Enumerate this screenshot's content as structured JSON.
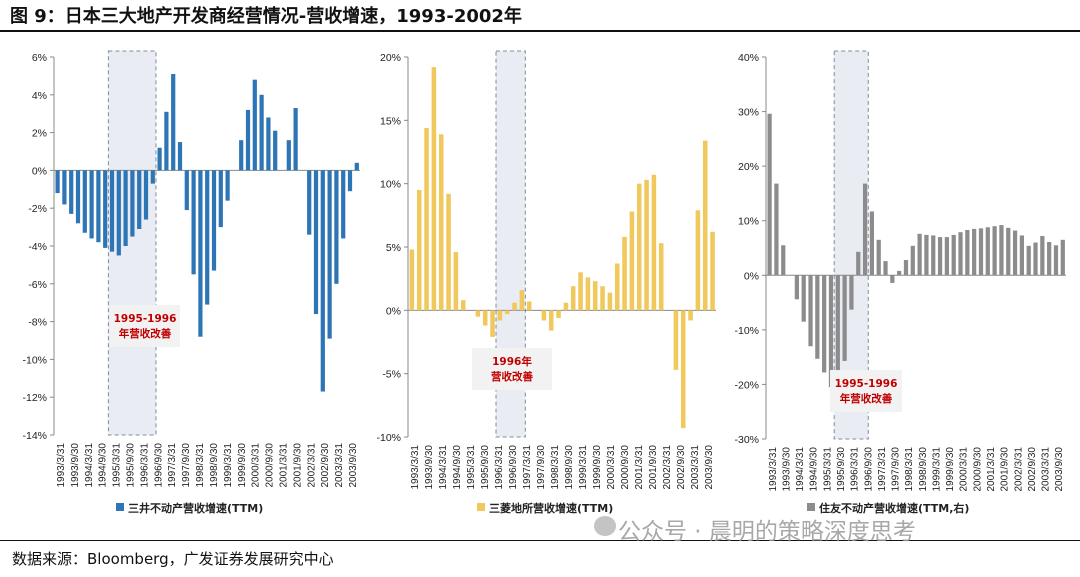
{
  "header": {
    "title": "图 9：日本三大地产开发商经营情况-营收增速，1993-2002年"
  },
  "footer": {
    "source": "数据来源：Bloomberg，广发证券发展研究中心",
    "watermark": "公众号 · 晨明的策略深度思考"
  },
  "chart_data": [
    {
      "type": "bar",
      "series": [
        {
          "name": "三井不动产营收增速(TTM)",
          "color": "#2e75b6"
        }
      ],
      "x_ticks": [
        "1993/3/31",
        "1993/9/30",
        "1994/3/31",
        "1994/9/30",
        "1995/3/31",
        "1995/9/30",
        "1996/3/31",
        "1996/9/30",
        "1997/3/31",
        "1997/9/30",
        "1998/3/31",
        "1998/9/30",
        "1999/3/31",
        "1999/9/30",
        "2000/3/31",
        "2000/9/30",
        "2001/3/31",
        "2001/9/30",
        "2002/3/31",
        "2002/9/30",
        "2003/3/31",
        "2003/9/30"
      ],
      "values": [
        -1.2,
        -1.8,
        -2.3,
        -2.8,
        -3.3,
        -3.6,
        -3.8,
        -4.1,
        -4.3,
        -4.5,
        -4.0,
        -3.5,
        -3.1,
        -2.6,
        -0.7,
        1.2,
        3.1,
        5.1,
        1.5,
        -2.1,
        -5.5,
        -8.8,
        -7.1,
        -5.3,
        -3.0,
        -1.6,
        0.0,
        1.6,
        3.2,
        4.8,
        4.0,
        2.8,
        2.1,
        0.0,
        1.6,
        3.3,
        0.0,
        -3.4,
        -7.6,
        -11.7,
        -8.9,
        -6.0,
        -3.6,
        -1.1,
        0.4
      ],
      "y_ticks": [
        "6%",
        "4%",
        "2%",
        "0%",
        "-2%",
        "-4%",
        "-6%",
        "-8%",
        "-10%",
        "-12%",
        "-14%"
      ],
      "ylim": [
        -14,
        6
      ],
      "highlight": {
        "from": 8,
        "to": 15,
        "label": "1995-1996 年营收改善"
      }
    },
    {
      "type": "bar",
      "series": [
        {
          "name": "三菱地所营收增速(TTM)",
          "color": "#f0c85c"
        }
      ],
      "x_ticks": [
        "1993/3/31",
        "1993/9/30",
        "1994/3/31",
        "1994/9/30",
        "1995/3/31",
        "1995/9/30",
        "1996/3/31",
        "1996/9/30",
        "1997/3/31",
        "1997/9/30",
        "1998/3/31",
        "1998/9/30",
        "1999/3/31",
        "1999/9/30",
        "2000/3/31",
        "2000/9/30",
        "2001/3/31",
        "2001/9/30",
        "2002/3/31",
        "2002/9/30",
        "2003/3/31",
        "2003/9/30"
      ],
      "values": [
        4.8,
        9.5,
        14.4,
        19.2,
        13.9,
        9.2,
        4.6,
        0.8,
        0.0,
        -0.5,
        -1.2,
        -2.1,
        -0.8,
        -0.3,
        0.6,
        1.6,
        0.7,
        0.0,
        -0.8,
        -1.6,
        -0.6,
        0.6,
        1.9,
        3.0,
        2.6,
        2.3,
        1.9,
        1.4,
        3.7,
        5.8,
        7.8,
        10.0,
        10.3,
        10.7,
        5.3,
        0.0,
        -4.7,
        -9.3,
        -0.8,
        7.9,
        13.4,
        6.2
      ],
      "y_ticks": [
        "20%",
        "15%",
        "10%",
        "5%",
        "0%",
        "-5%",
        "-10%"
      ],
      "ylim": [
        -10,
        20
      ],
      "highlight": {
        "from": 12,
        "to": 16,
        "label": "1996年营收改善"
      }
    },
    {
      "type": "bar",
      "series": [
        {
          "name": "住友不动产营收增速(TTM,右)",
          "color": "#8c8c8c"
        }
      ],
      "x_ticks": [
        "1993/3/31",
        "1993/9/30",
        "1994/3/31",
        "1994/9/30",
        "1995/3/31",
        "1995/9/30",
        "1996/3/31",
        "1996/9/30",
        "1997/3/31",
        "1997/9/30",
        "1998/3/31",
        "1998/9/30",
        "1999/3/31",
        "1999/9/30",
        "2000/3/31",
        "2000/9/30",
        "2001/3/31",
        "2001/9/30",
        "2002/3/31",
        "2002/9/30",
        "2003/3/31",
        "2003/9/30"
      ],
      "values": [
        29.6,
        16.8,
        5.5,
        0.0,
        -4.4,
        -8.5,
        -13.0,
        -15.3,
        -17.8,
        -20.5,
        -23.5,
        -15.7,
        -6.3,
        4.3,
        16.8,
        11.7,
        6.5,
        2.6,
        -1.4,
        0.8,
        2.8,
        5.4,
        7.6,
        7.4,
        7.3,
        7.0,
        7.0,
        7.4,
        7.9,
        8.3,
        8.5,
        8.6,
        8.8,
        9.0,
        9.2,
        8.7,
        8.2,
        7.3,
        5.4,
        6.0,
        7.2,
        6.1,
        5.5,
        6.5
      ],
      "y_ticks": [
        "40%",
        "30%",
        "20%",
        "10%",
        "0%",
        "-10%",
        "-20%",
        "-30%"
      ],
      "ylim": [
        -30,
        40
      ],
      "highlight": {
        "from": 10,
        "to": 15,
        "label": "1995-1996 年营收改善"
      }
    }
  ]
}
